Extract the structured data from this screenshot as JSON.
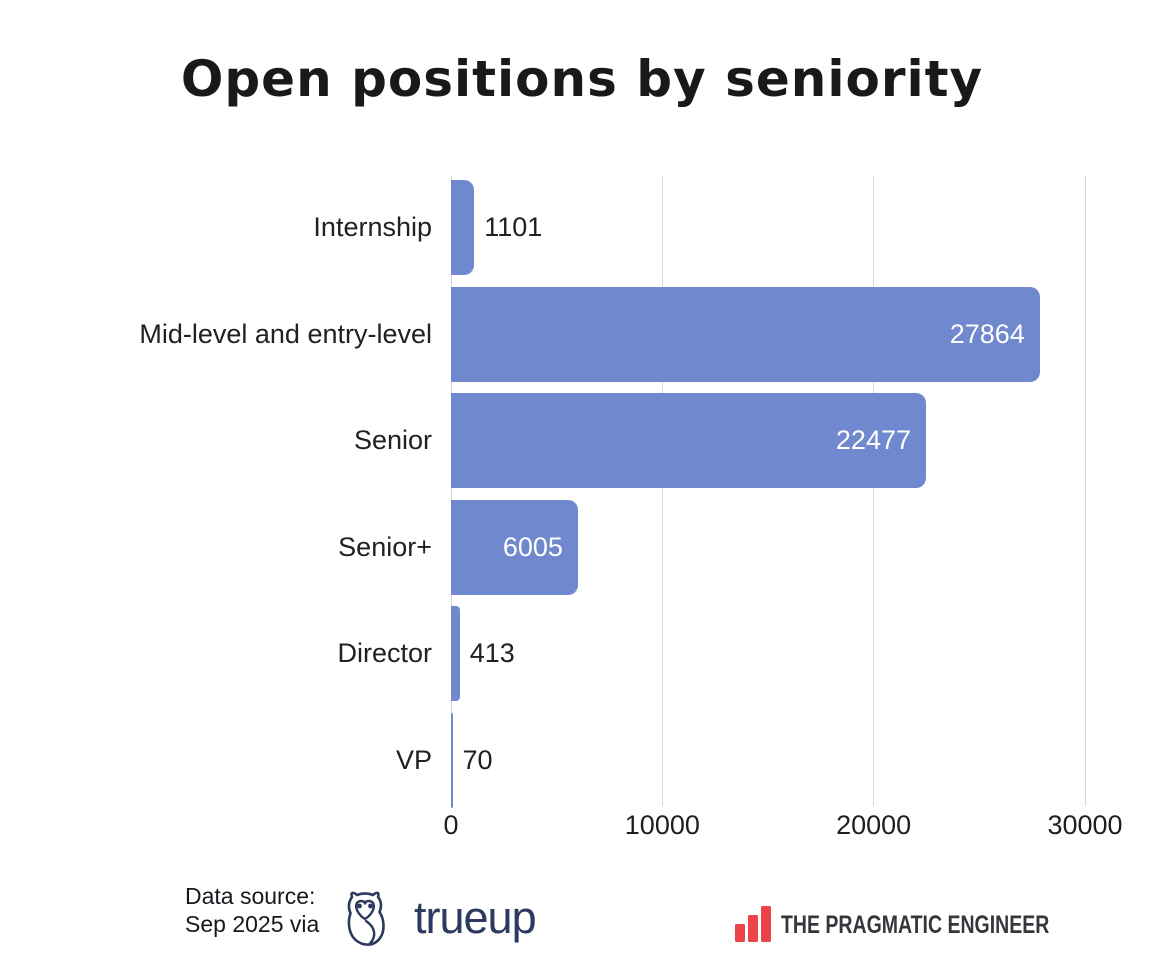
{
  "title": "Open positions by seniority",
  "chart_data": {
    "type": "bar",
    "orientation": "horizontal",
    "title": "Open positions by seniority",
    "categories": [
      "Internship",
      "Mid-level and entry-level",
      "Senior",
      "Senior+",
      "Director",
      "VP"
    ],
    "values": [
      1101,
      27864,
      22477,
      6005,
      413,
      70
    ],
    "value_labels": [
      "1101",
      "27864",
      "22477",
      "6005",
      "413",
      "70"
    ],
    "xlabel": "",
    "ylabel": "",
    "xlim": [
      0,
      30000
    ],
    "x_ticks": [
      0,
      10000,
      20000,
      30000
    ],
    "x_tick_labels": [
      "0",
      "10000",
      "20000",
      "30000"
    ],
    "grid": true,
    "legend": false,
    "bar_color": "#7088cd",
    "value_label_inside_color": "#ffffff",
    "value_label_outside_color": "#212121",
    "gridline_color": "#d8d8d8"
  },
  "footer": {
    "source_line1": "Data source:",
    "source_line2": "Sep 2025 via",
    "trueup_label": "trueup",
    "pragmatic_label": "THE PRAGMATIC ENGINEER"
  },
  "colors": {
    "background": "#ffffff",
    "title_text": "#191919",
    "axis_text": "#1f1f1f",
    "trueup_navy": "#2b3a5e",
    "pragmatic_red": "#ee4348",
    "pragmatic_text": "#34373c"
  }
}
